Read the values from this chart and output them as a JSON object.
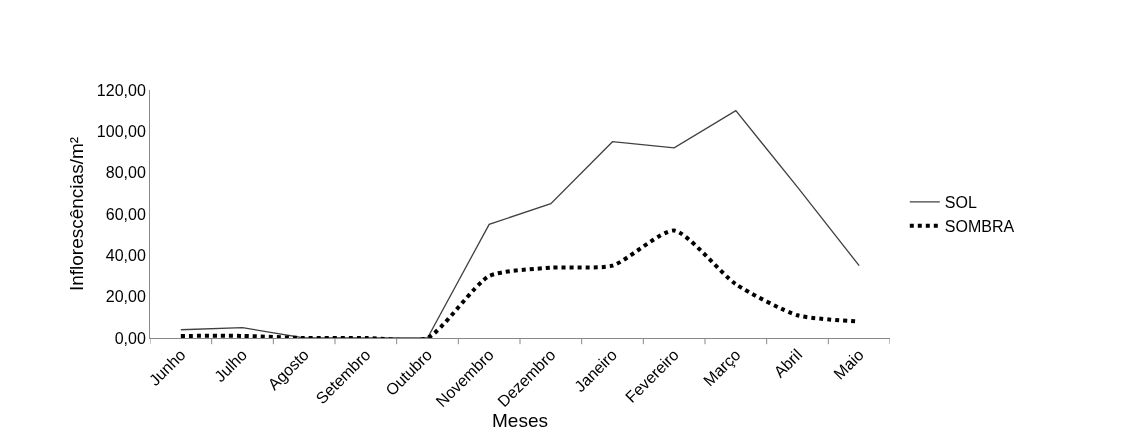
{
  "chart_data": {
    "type": "line",
    "xlabel": "Meses",
    "ylabel": "Inflorescências/m²",
    "categories": [
      "Junho",
      "Julho",
      "Agosto",
      "Setembro",
      "Outubro",
      "Novembro",
      "Dezembro",
      "Janeiro",
      "Fevereiro",
      "Março",
      "Abril",
      "Maio"
    ],
    "series": [
      {
        "name": "SOL",
        "color": "#404040",
        "line_style": "solid",
        "values": [
          4,
          5,
          0,
          0,
          0,
          55,
          65,
          95,
          92,
          110,
          73,
          35
        ]
      },
      {
        "name": "SOMBRA",
        "color": "#000000",
        "line_style": "dotted",
        "values": [
          1,
          1,
          0,
          0,
          0,
          30,
          34,
          35,
          52,
          26,
          11,
          8
        ]
      }
    ],
    "ylim": [
      0,
      120
    ],
    "yticks": [
      {
        "value": 0,
        "label": "0,00"
      },
      {
        "value": 20,
        "label": "20,00"
      },
      {
        "value": 40,
        "label": "40,00"
      },
      {
        "value": 60,
        "label": "60,00"
      },
      {
        "value": 80,
        "label": "80,00"
      },
      {
        "value": 100,
        "label": "100,00"
      },
      {
        "value": 120,
        "label": "120,00"
      }
    ],
    "legend": "right",
    "marker": "none"
  }
}
